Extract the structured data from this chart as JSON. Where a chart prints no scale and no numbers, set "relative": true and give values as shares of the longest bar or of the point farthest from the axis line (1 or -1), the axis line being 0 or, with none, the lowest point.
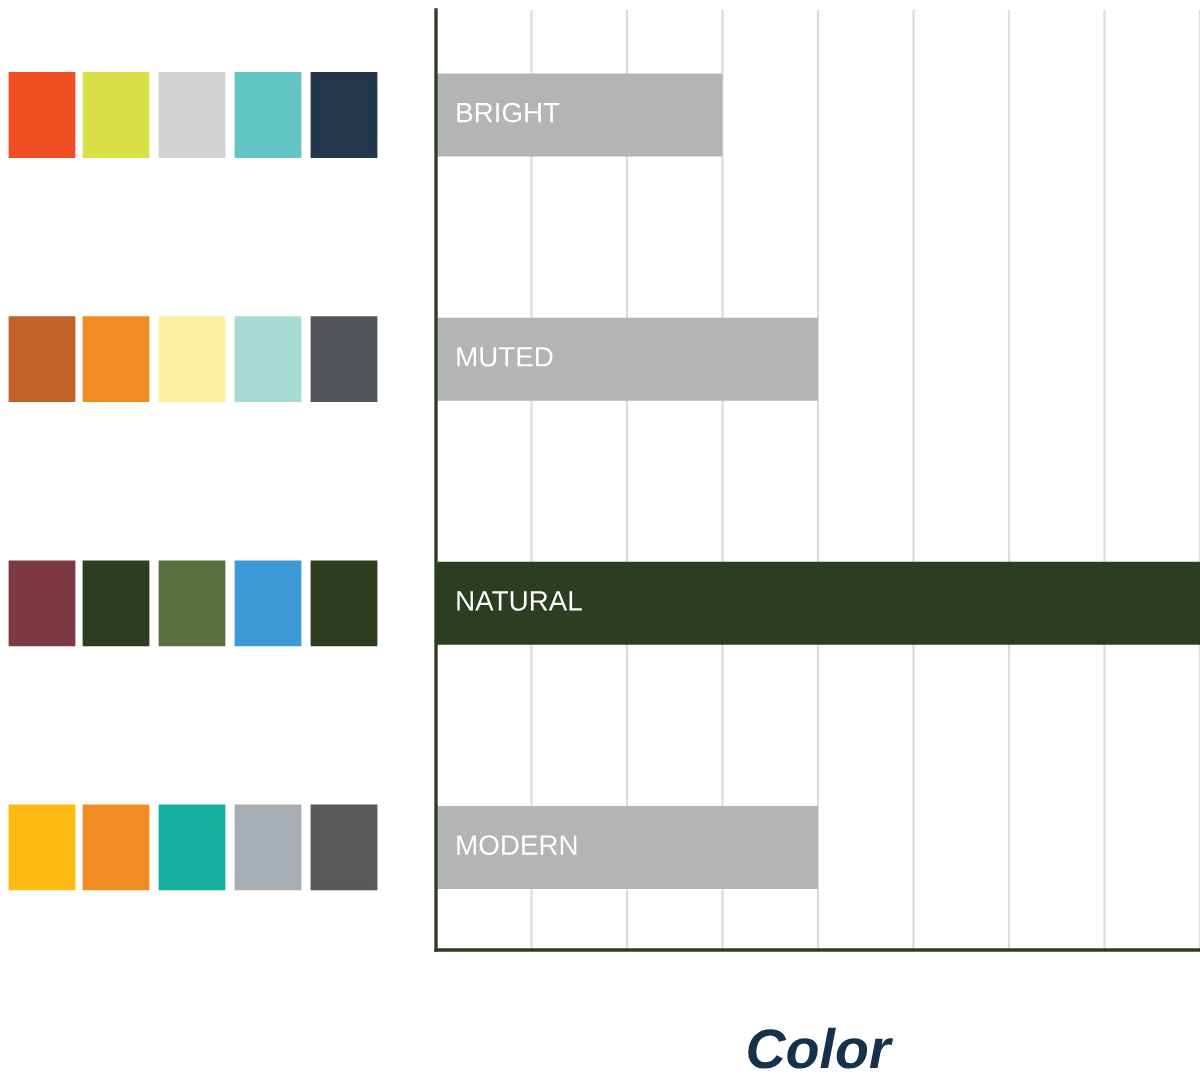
{
  "chart_data": {
    "type": "bar",
    "orientation": "horizontal",
    "relative": true,
    "xlabel": "Color",
    "categories": [
      "BRIGHT",
      "MUTED",
      "NATURAL",
      "MODERN"
    ],
    "values": [
      0.375,
      0.5,
      1,
      0.5
    ],
    "colors": [
      "#b3b4b6",
      "#b3b4b6",
      "#2d3d1f",
      "#b3b4b6"
    ],
    "grid": "x"
  }
}
